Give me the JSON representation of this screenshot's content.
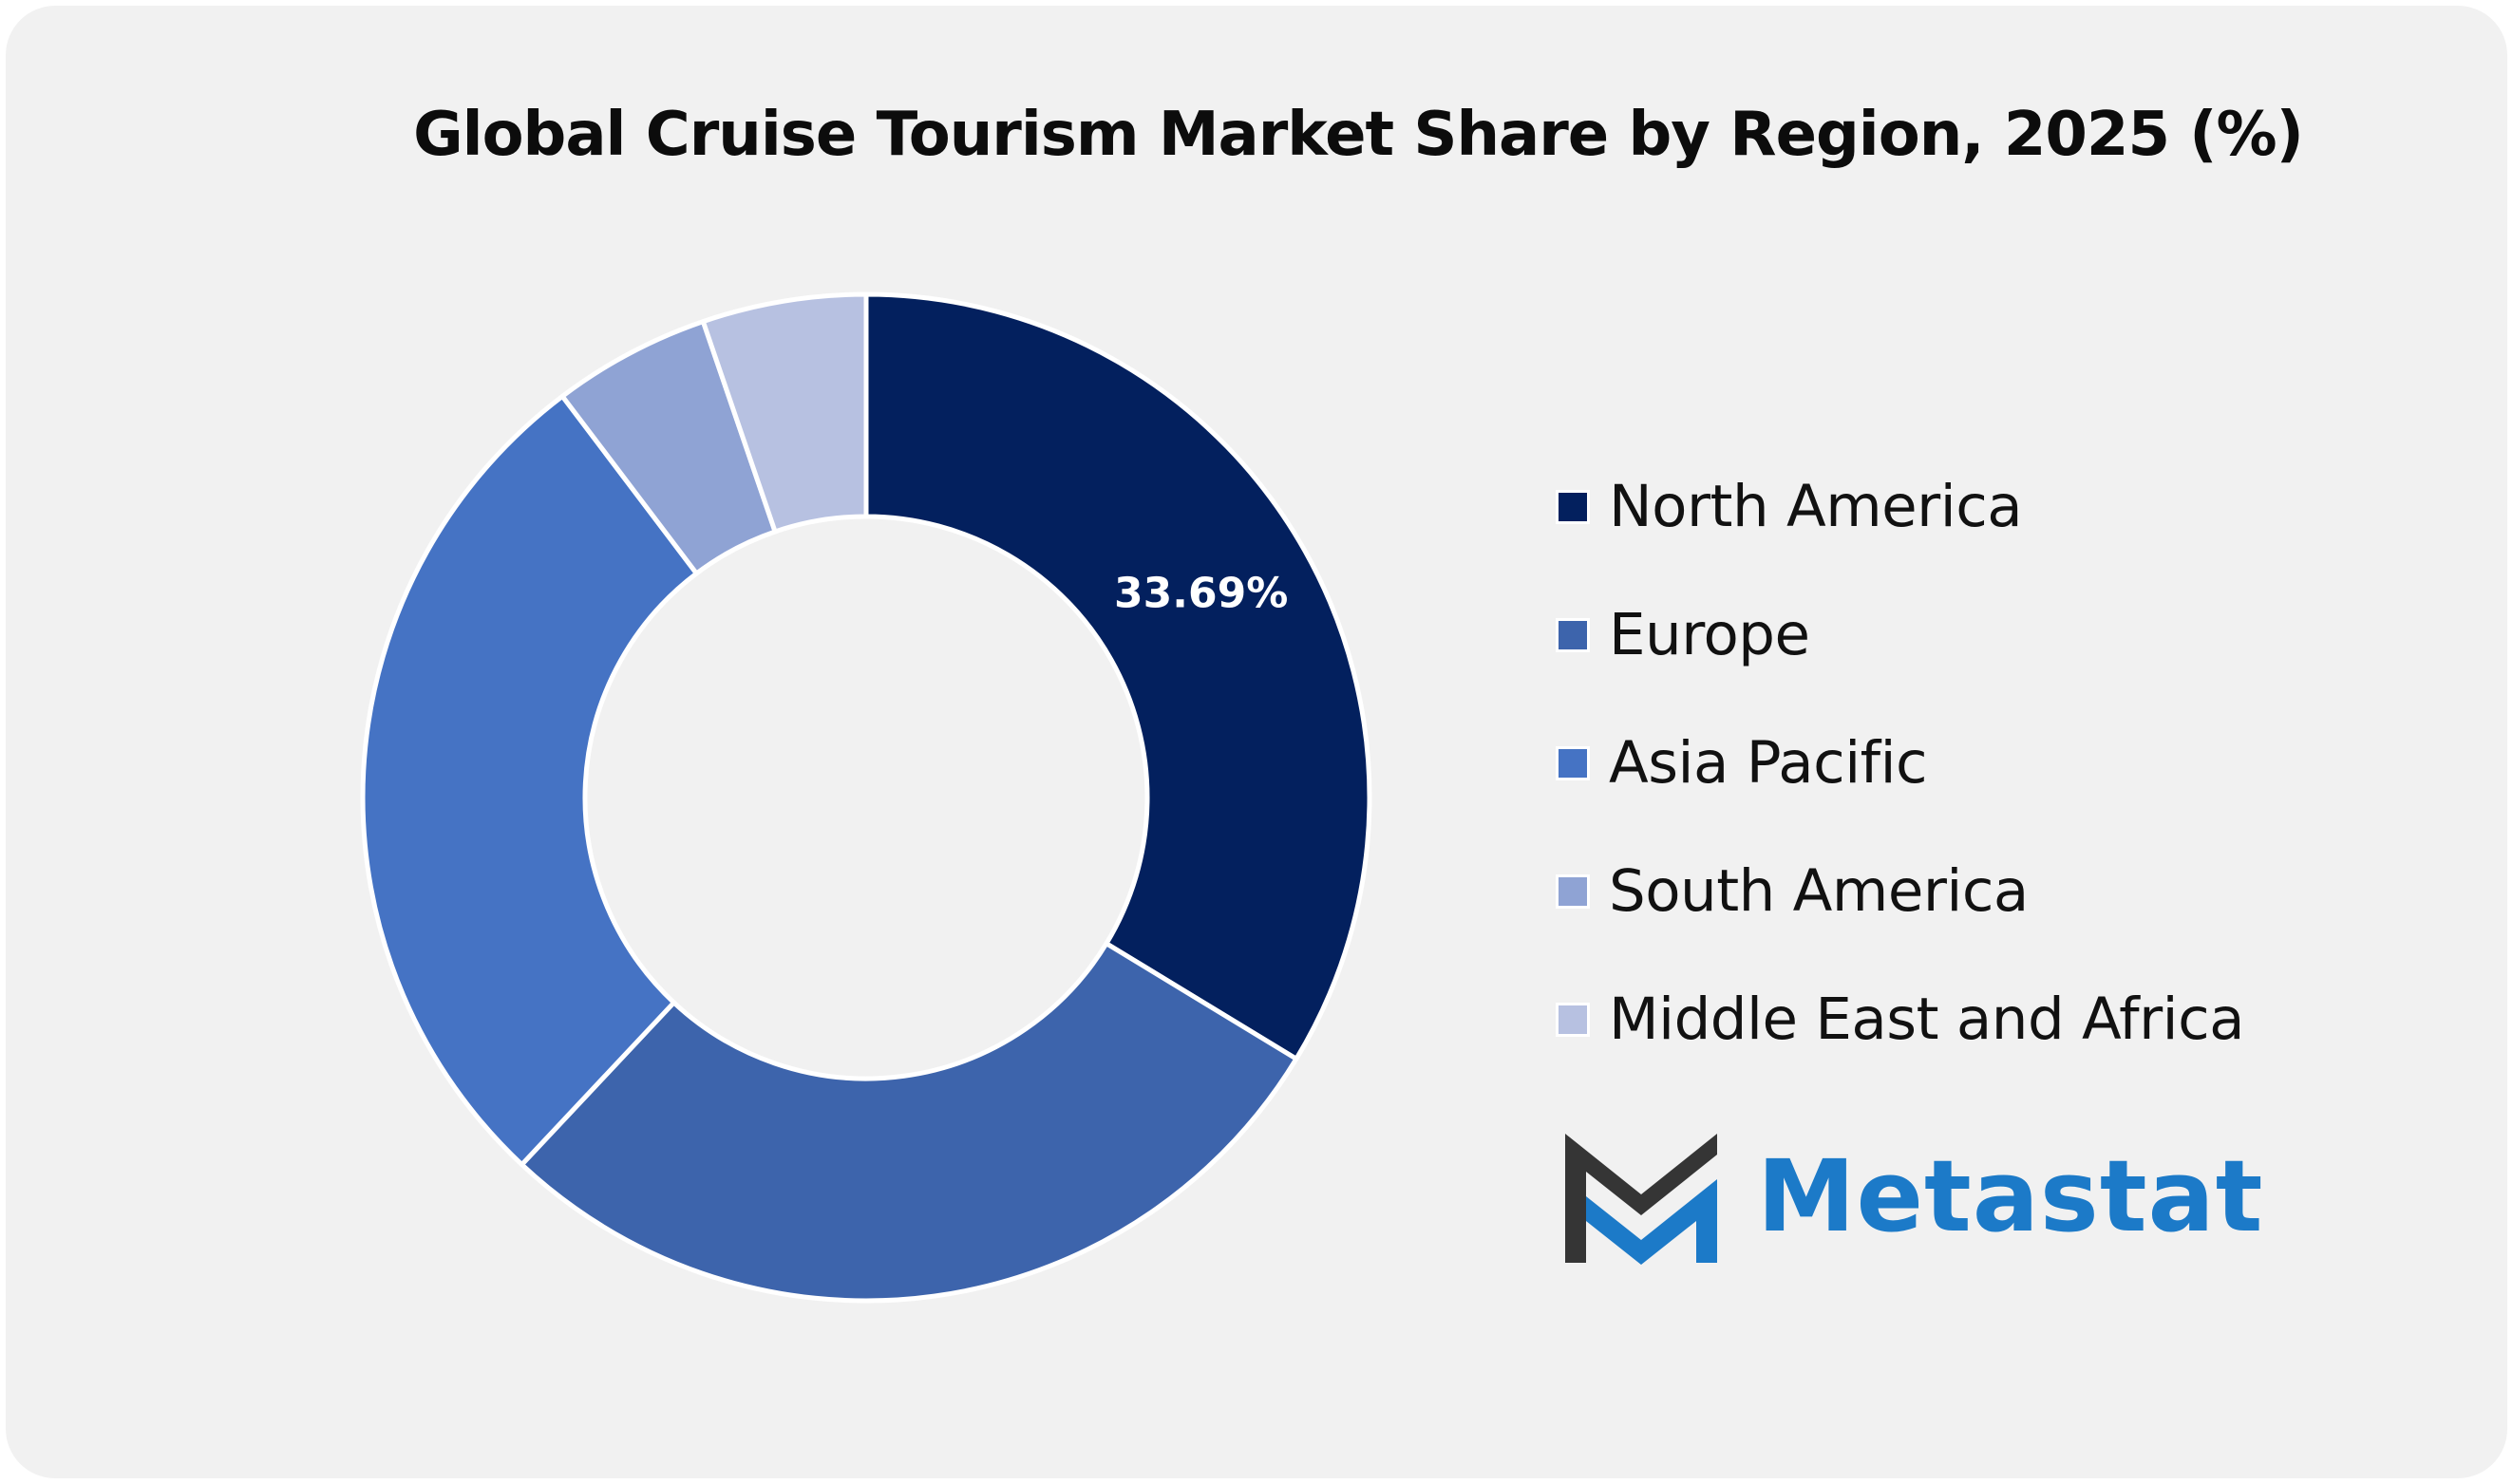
{
  "chart_data": {
    "type": "pie",
    "title": "Global Cruise Tourism Market Share by Region, 2025 (%)",
    "donut": true,
    "categories": [
      "North America",
      "Europe",
      "Asia Pacific",
      "South America",
      "Middle East and Africa"
    ],
    "values": [
      33.69,
      28.3,
      27.7,
      5.06,
      5.25
    ],
    "colors": [
      "#03205e",
      "#3d64ac",
      "#4573c4",
      "#8fa3d4",
      "#b7c1e1"
    ],
    "data_labels": [
      {
        "category": "North America",
        "text": "33.69%"
      }
    ],
    "legend_position": "right"
  },
  "logo": {
    "name": "metastat-logo",
    "text": "Metastat",
    "colors": {
      "dark": "#353535",
      "blue": "#1c7ac8"
    }
  },
  "colors": {
    "background": "#f1f1f1",
    "slice_border": "#ffffff",
    "label_text": "#ffffff"
  }
}
